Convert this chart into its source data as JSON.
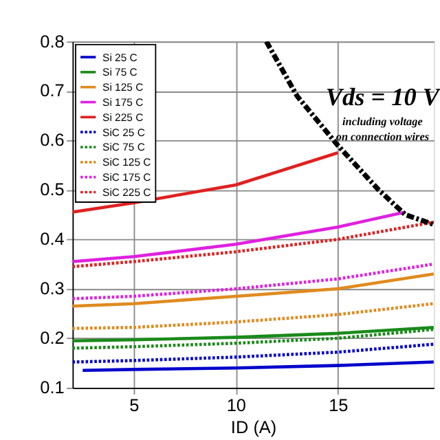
{
  "chart_data": {
    "type": "line",
    "xlabel": "ID (A)",
    "xlim": [
      2,
      19.7
    ],
    "xticks": [
      5,
      10,
      15
    ],
    "ylim": [
      0.1,
      0.8
    ],
    "yticks": [
      0.1,
      0.2,
      0.3,
      0.4,
      0.5,
      0.6,
      0.7,
      0.8
    ],
    "grid": true,
    "legend": "top left",
    "annotations": [
      "Vds = 10 V",
      "including voltage",
      "on connection wires"
    ],
    "series": [
      {
        "name": "Si 25 C",
        "color": "#0000cc",
        "line_style": "solid",
        "x": [
          2.5,
          5,
          10,
          15,
          19.7
        ],
        "values": [
          0.135,
          0.137,
          0.14,
          0.145,
          0.152
        ]
      },
      {
        "name": "Si 75 C",
        "color": "#1a8a1a",
        "line_style": "solid",
        "x": [
          2,
          5,
          10,
          15,
          19.7
        ],
        "values": [
          0.195,
          0.197,
          0.202,
          0.21,
          0.222
        ]
      },
      {
        "name": "Si 125 C",
        "color": "#e08a1e",
        "line_style": "solid",
        "x": [
          2,
          5,
          10,
          15,
          19.7
        ],
        "values": [
          0.265,
          0.27,
          0.285,
          0.3,
          0.33
        ]
      },
      {
        "name": "Si 175 C",
        "color": "#e020e0",
        "line_style": "solid",
        "x": [
          2,
          5,
          10,
          15,
          18.3
        ],
        "values": [
          0.355,
          0.365,
          0.39,
          0.425,
          0.455
        ]
      },
      {
        "name": "Si 225 C",
        "color": "#e02020",
        "line_style": "solid",
        "x": [
          2,
          5,
          10,
          15
        ],
        "values": [
          0.455,
          0.474,
          0.51,
          0.575
        ]
      },
      {
        "name": "SiC 25 C",
        "color": "#0000cc",
        "line_style": "dotted",
        "x": [
          2,
          5,
          10,
          15,
          19.7
        ],
        "values": [
          0.152,
          0.155,
          0.162,
          0.172,
          0.188
        ]
      },
      {
        "name": "SiC 75 C",
        "color": "#1a8a1a",
        "line_style": "dotted",
        "x": [
          2,
          5,
          10,
          15,
          19.7
        ],
        "values": [
          0.18,
          0.183,
          0.19,
          0.2,
          0.218
        ]
      },
      {
        "name": "SiC 125 C",
        "color": "#e08a1e",
        "line_style": "dotted",
        "x": [
          2,
          5,
          10,
          15,
          19.7
        ],
        "values": [
          0.22,
          0.222,
          0.233,
          0.248,
          0.27
        ]
      },
      {
        "name": "SiC 175 C",
        "color": "#e020e0",
        "line_style": "dotted",
        "x": [
          2,
          5,
          10,
          15,
          19.7
        ],
        "values": [
          0.28,
          0.285,
          0.3,
          0.32,
          0.35
        ]
      },
      {
        "name": "SiC 225 C",
        "color": "#e02020",
        "line_style": "dotted",
        "x": [
          2,
          5,
          10,
          15,
          19.7
        ],
        "values": [
          0.345,
          0.355,
          0.375,
          0.4,
          0.435
        ]
      },
      {
        "color": "#000000",
        "line_style": "dashed",
        "x": [
          11.5,
          13,
          15,
          17,
          18.3,
          19.7
        ],
        "values": [
          0.8,
          0.69,
          0.59,
          0.5,
          0.45,
          0.43
        ]
      }
    ]
  }
}
